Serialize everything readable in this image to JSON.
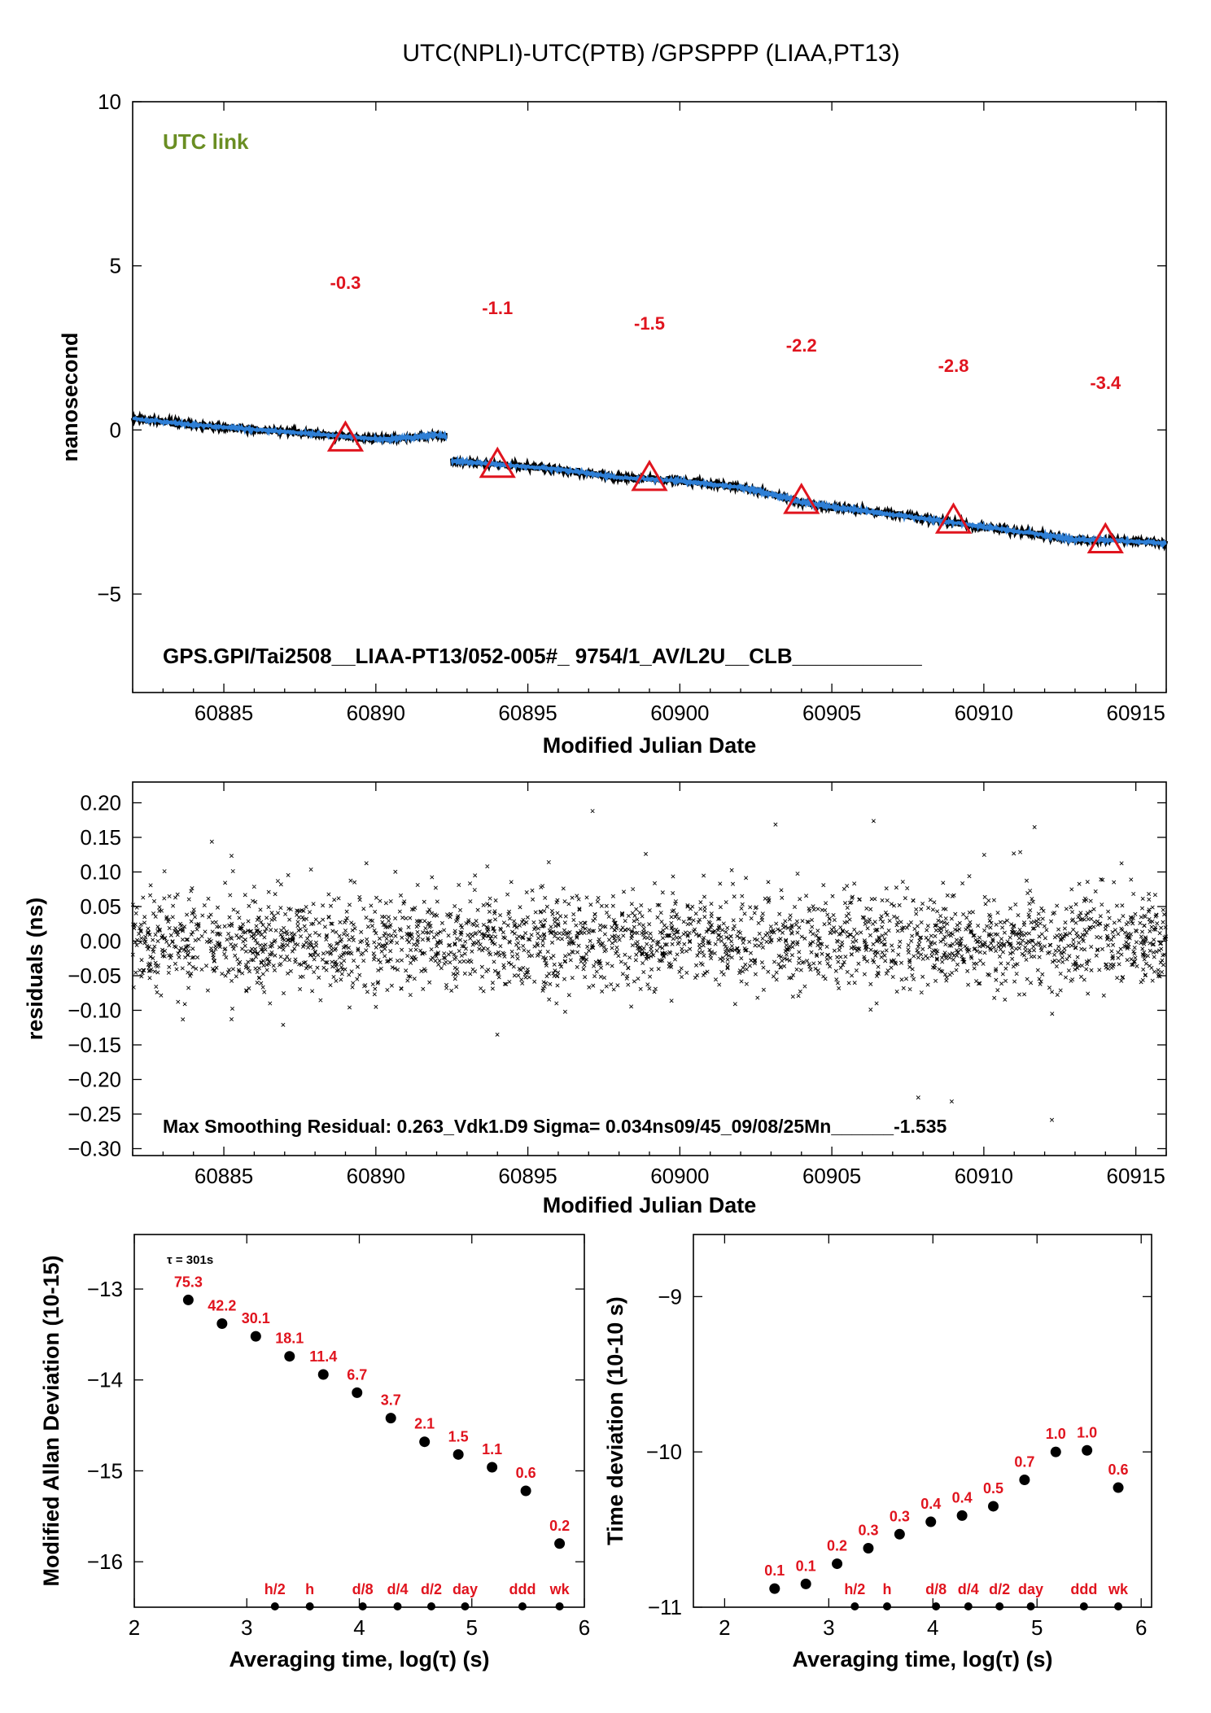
{
  "title": "UTC(NPLI)-UTC(PTB)  /GPSPPP  (LIAA,PT13)",
  "colors": {
    "red": "#e0141e",
    "green": "#6a8e23",
    "blue": "#2e7fd6",
    "black": "#000000"
  },
  "chart_data": [
    {
      "type": "line",
      "panel": "offset",
      "title": "UTC(NPLI)-UTC(PTB)  /GPSPPP  (LIAA,PT13)",
      "xlabel": "Modified Julian Date",
      "ylabel": "nanosecond",
      "xlim": [
        60882,
        60916
      ],
      "ylim": [
        -8,
        10
      ],
      "xticks": [
        60885,
        60890,
        60895,
        60900,
        60905,
        60910,
        60915
      ],
      "yticks": [
        -5,
        0,
        5,
        10
      ],
      "ytick_labels": [
        "−5",
        "0",
        "5",
        "10"
      ],
      "link_label": "UTC link",
      "footer": "GPS.GPI/Tai2508__LIAA-PT13/052-005#_  9754/1_AV/L2U__CLB___________",
      "series": [
        {
          "segment": 1,
          "x": [
            60882,
            60884,
            60886,
            60888,
            60890,
            60891,
            60892,
            60892.3
          ],
          "y": [
            0.35,
            0.15,
            0.02,
            -0.12,
            -0.28,
            -0.25,
            -0.15,
            -0.2
          ]
        },
        {
          "segment": 2,
          "x": [
            60892.5,
            60894,
            60896,
            60898,
            60900,
            60902,
            60903,
            60904,
            60905,
            60906,
            60908,
            60910,
            60912,
            60913,
            60914,
            60916
          ],
          "y": [
            -0.95,
            -1.05,
            -1.2,
            -1.45,
            -1.55,
            -1.75,
            -1.95,
            -2.2,
            -2.35,
            -2.45,
            -2.7,
            -2.95,
            -3.2,
            -3.35,
            -3.35,
            -3.45
          ]
        }
      ],
      "markers": {
        "x": [
          60889,
          60894,
          60899,
          60904,
          60909,
          60914
        ],
        "y": [
          -0.3,
          -1.1,
          -1.5,
          -2.2,
          -2.8,
          -3.4
        ]
      },
      "annotations": [
        "-0.3",
        "-1.1",
        "-1.5",
        "-2.2",
        "-2.8",
        "-3.4"
      ]
    },
    {
      "type": "scatter",
      "panel": "residuals",
      "xlabel": "Modified Julian Date",
      "ylabel": "residuals (ns)",
      "xlim": [
        60882,
        60916
      ],
      "ylim": [
        -0.31,
        0.23
      ],
      "xticks": [
        60885,
        60890,
        60895,
        60900,
        60905,
        60910,
        60915
      ],
      "yticks": [
        0.2,
        0.15,
        0.1,
        0.05,
        0.0,
        -0.05,
        -0.1,
        -0.15,
        -0.2,
        -0.25,
        -0.3
      ],
      "ytick_labels": [
        "0.20",
        "0.15",
        "0.10",
        "0.05",
        "0.00",
        "−0.05",
        "−0.10",
        "−0.15",
        "−0.20",
        "−0.25",
        "−0.30"
      ],
      "sigma_ns": 0.034,
      "max_residual": 0.263,
      "footer": "Max Smoothing Residual: 0.263_Vdk1.D9  Sigma= 0.034ns09/45_09/08/25Mn______-1.535"
    },
    {
      "type": "scatter",
      "panel": "mdev",
      "xlabel": "Averaging time, log(τ) (s)",
      "ylabel": "Modified Allan Deviation (10-15)",
      "xlim": [
        2,
        6
      ],
      "ylim": [
        -16.5,
        -12.4
      ],
      "xticks": [
        2,
        3,
        4,
        5,
        6
      ],
      "yticks": [
        -13,
        -14,
        -15,
        -16
      ],
      "ytick_labels": [
        "−13",
        "−14",
        "−15",
        "−16"
      ],
      "tau_note": "τ = 301s",
      "x": [
        2.48,
        2.78,
        3.08,
        3.38,
        3.68,
        3.98,
        4.28,
        4.58,
        4.88,
        5.18,
        5.48,
        5.78
      ],
      "y": [
        -13.12,
        -13.38,
        -13.52,
        -13.74,
        -13.94,
        -14.14,
        -14.42,
        -14.68,
        -14.82,
        -14.96,
        -15.22,
        -15.8
      ],
      "labels": [
        "75.3",
        "42.2",
        "30.1",
        "18.1",
        "11.4",
        "6.7",
        "3.7",
        "2.1",
        "1.5",
        "1.1",
        "0.6",
        "0.2"
      ],
      "time_marks": {
        "x": [
          3.25,
          3.56,
          4.03,
          4.34,
          4.64,
          4.94,
          5.45,
          5.78
        ],
        "labels": [
          "h/2",
          "h",
          "d/8",
          "d/4",
          "d/2",
          "day",
          "ddd",
          "wk"
        ]
      }
    },
    {
      "type": "scatter",
      "panel": "tdev",
      "xlabel": "Averaging time, log(τ) (s)",
      "ylabel": "Time deviation (10-10 s)",
      "xlim": [
        1.7,
        6.1
      ],
      "ylim": [
        -11,
        -8.6
      ],
      "xticks": [
        2,
        3,
        4,
        5,
        6
      ],
      "yticks": [
        -9,
        -10,
        -11
      ],
      "ytick_labels": [
        "−9",
        "−10",
        "−11"
      ],
      "x": [
        2.48,
        2.78,
        3.08,
        3.38,
        3.68,
        3.98,
        4.28,
        4.58,
        4.88,
        5.18,
        5.48,
        5.78
      ],
      "y": [
        -10.88,
        -10.85,
        -10.72,
        -10.62,
        -10.53,
        -10.45,
        -10.41,
        -10.35,
        -10.18,
        -10.0,
        -9.99,
        -10.23
      ],
      "labels": [
        "0.1",
        "0.1",
        "0.2",
        "0.3",
        "0.3",
        "0.4",
        "0.4",
        "0.5",
        "0.7",
        "1.0",
        "1.0",
        "0.6"
      ],
      "time_marks": {
        "x": [
          3.25,
          3.56,
          4.03,
          4.34,
          4.64,
          4.94,
          5.45,
          5.78
        ],
        "labels": [
          "h/2",
          "h",
          "d/8",
          "d/4",
          "d/2",
          "day",
          "ddd",
          "wk"
        ]
      }
    }
  ]
}
